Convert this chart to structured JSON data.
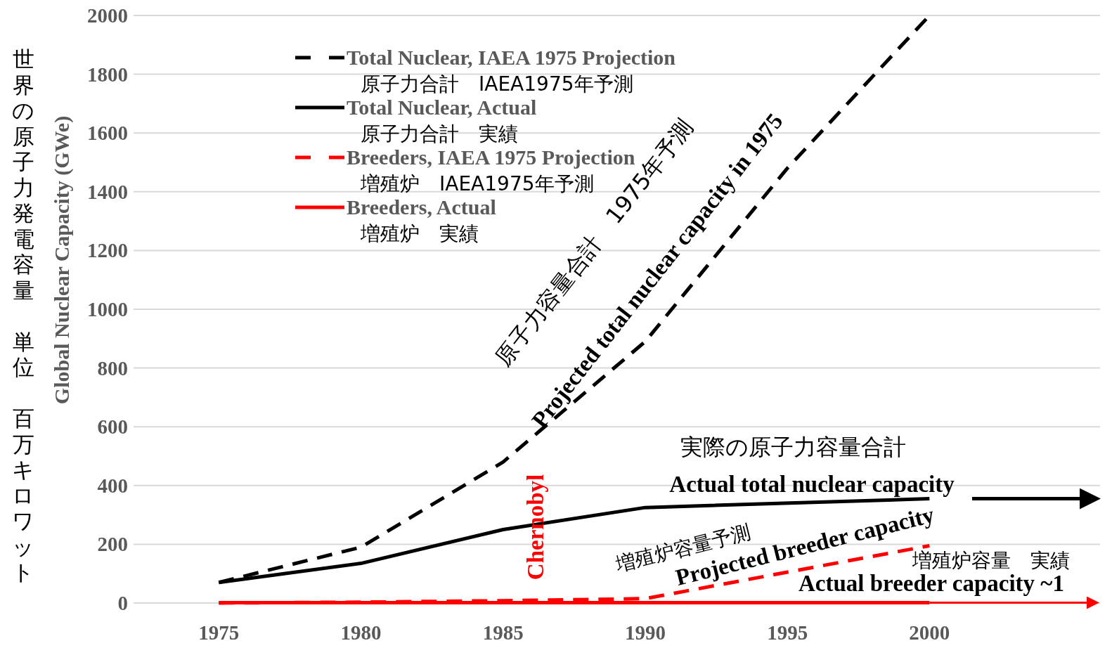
{
  "chart_data": {
    "type": "line",
    "ylabel": "Global  Nuclear Capacity (GWe)",
    "xlim": [
      1972,
      2006
    ],
    "xticks": [
      1975,
      1980,
      1985,
      1990,
      1995,
      2000
    ],
    "ylim": [
      0,
      2000
    ],
    "yticks": [
      0,
      200,
      400,
      600,
      800,
      1000,
      1200,
      1400,
      1600,
      1800,
      2000
    ],
    "grid": "y",
    "legend": "top left",
    "series": [
      {
        "name": "Total Nuclear, IAEA 1975 Projection\n原子力合計　IAEA1975年予測",
        "color": "#000000",
        "line_style": "dashed",
        "x": [
          1975,
          1980,
          1985,
          1990,
          1995,
          2000
        ],
        "values": [
          70,
          190,
          480,
          890,
          1480,
          2000
        ]
      },
      {
        "name": "Total Nuclear, Actual\n原子力合計　実績",
        "color": "#000000",
        "line_style": "solid",
        "x": [
          1975,
          1980,
          1985,
          1990,
          2000
        ],
        "values": [
          70,
          135,
          250,
          325,
          355
        ]
      },
      {
        "name": "Breeders, IAEA 1975 Projection\n増殖炉　IAEA1975年予測",
        "color": "#ff0000",
        "line_style": "dashed",
        "x": [
          1975,
          1980,
          1985,
          1990,
          2000
        ],
        "values": [
          0,
          3,
          8,
          15,
          195
        ]
      },
      {
        "name": "Breeders, Actual\n増殖炉　実績",
        "color": "#ff0000",
        "line_style": "solid",
        "x": [
          1975,
          2000
        ],
        "values": [
          1,
          1
        ]
      }
    ],
    "annotations": [
      "原子力容量合計　1975年予測",
      "Projected total nuclear capacity in 1975",
      "実際の原子力容量合計",
      "Actual total nuclear capacity",
      "増殖炉容量予測",
      "Projected breeder capacity",
      "増殖炉容量　実績",
      "Actual breeder capacity ~1",
      "Chernobyl",
      "世界の原子力発電容量",
      "単位",
      "百万キロワット"
    ]
  }
}
